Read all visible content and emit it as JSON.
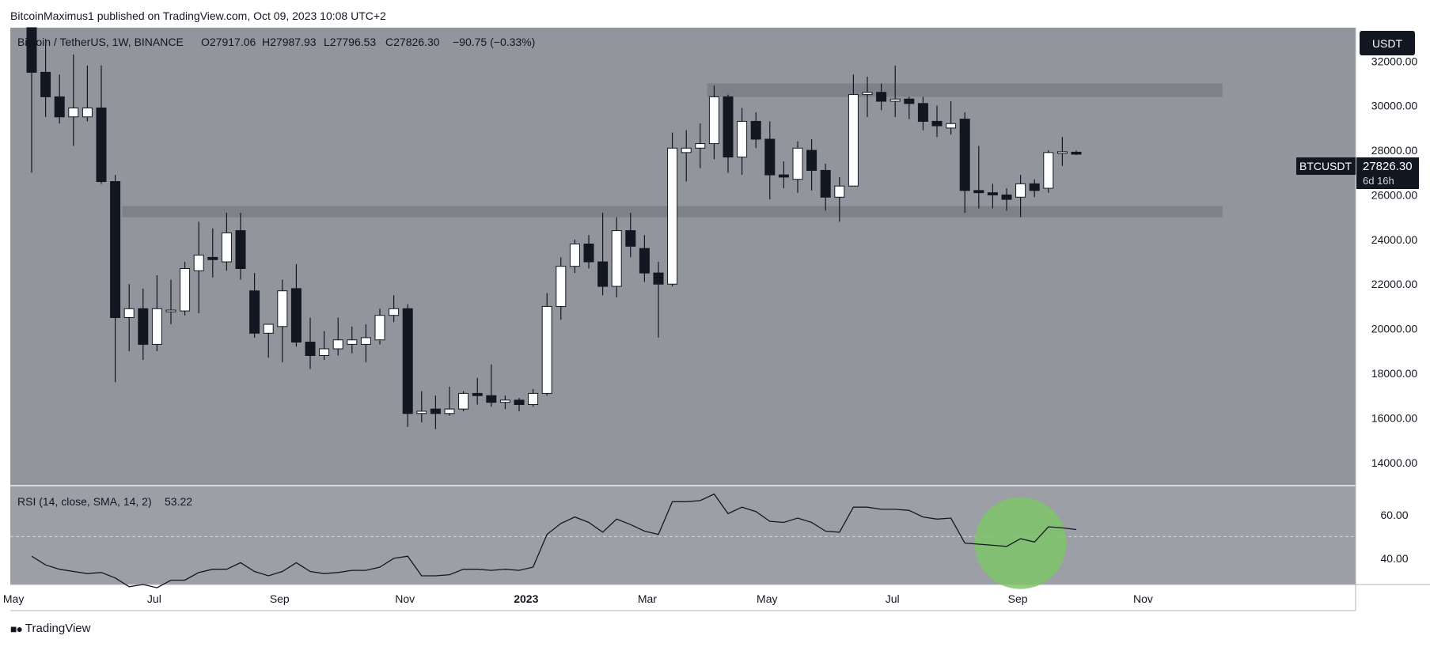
{
  "publisher_line": "BitcoinMaximus1 published on TradingView.com, Oct 09, 2023 10:08 UTC+2",
  "footer_brand": "TradingView",
  "colors": {
    "background": "#92959c",
    "rsi_background": "#9c9fa6",
    "bull_candle": "#ffffff",
    "bear_candle": "#131722",
    "zone": "#7e8188",
    "highlight": "#7fc46a"
  },
  "chart_data": [
    {
      "type": "candlestick",
      "symbol_title": "Bitcoin / TetherUS, 1W, BINANCE",
      "ohlc_header": {
        "o_label": "O",
        "o": "27917.06",
        "h_label": "H",
        "h": "27987.93",
        "l_label": "L",
        "l": "27796.53",
        "c_label": "C",
        "c": "27826.30",
        "change": "−90.75 (−0.33%)"
      },
      "currency_button": "USDT",
      "price_tag": {
        "symbol": "BTCUSDT",
        "price": "27826.30",
        "countdown": "6d 16h"
      },
      "ylim": [
        13000,
        33500
      ],
      "y_ticks": [
        "32000.00",
        "30000.00",
        "28000.00",
        "26000.00",
        "24000.00",
        "22000.00",
        "20000.00",
        "18000.00",
        "16000.00",
        "14000.00"
      ],
      "y_tick_values": [
        32000,
        30000,
        28000,
        26000,
        24000,
        22000,
        20000,
        18000,
        16000,
        14000
      ],
      "x_labels": [
        {
          "label": "May",
          "index": -1.3,
          "bold": false
        },
        {
          "label": "Jul",
          "index": 8.8,
          "bold": false
        },
        {
          "label": "Sep",
          "index": 17.8,
          "bold": false
        },
        {
          "label": "Nov",
          "index": 26.8,
          "bold": false
        },
        {
          "label": "2023",
          "index": 35.5,
          "bold": true
        },
        {
          "label": "Mar",
          "index": 44.2,
          "bold": false
        },
        {
          "label": "May",
          "index": 52.8,
          "bold": false
        },
        {
          "label": "Jul",
          "index": 61.8,
          "bold": false
        },
        {
          "label": "Sep",
          "index": 70.8,
          "bold": false
        },
        {
          "label": "Nov",
          "index": 79.8,
          "bold": false
        }
      ],
      "horizontal_zones": [
        {
          "from_index": 48.5,
          "to_index": 85.5,
          "low": 30400,
          "high": 31000
        },
        {
          "from_index": 6.5,
          "to_index": 85.5,
          "low": 25000,
          "high": 25500
        }
      ],
      "candles": [
        {
          "o": 35000,
          "h": 35500,
          "l": 27000,
          "c": 31500
        },
        {
          "o": 31500,
          "h": 33000,
          "l": 29500,
          "c": 30400
        },
        {
          "o": 30400,
          "h": 31400,
          "l": 29200,
          "c": 29500
        },
        {
          "o": 29500,
          "h": 32300,
          "l": 28200,
          "c": 29900
        },
        {
          "o": 29500,
          "h": 31800,
          "l": 29300,
          "c": 29900
        },
        {
          "o": 29900,
          "h": 31800,
          "l": 26500,
          "c": 26600
        },
        {
          "o": 26600,
          "h": 26900,
          "l": 17600,
          "c": 20500
        },
        {
          "o": 20500,
          "h": 22000,
          "l": 19000,
          "c": 20900
        },
        {
          "o": 20900,
          "h": 21800,
          "l": 18600,
          "c": 19300
        },
        {
          "o": 19300,
          "h": 22400,
          "l": 19000,
          "c": 20900
        },
        {
          "o": 20800,
          "h": 22200,
          "l": 20200,
          "c": 20800
        },
        {
          "o": 20800,
          "h": 23000,
          "l": 20600,
          "c": 22700
        },
        {
          "o": 22600,
          "h": 24800,
          "l": 20700,
          "c": 23300
        },
        {
          "o": 23200,
          "h": 24500,
          "l": 22300,
          "c": 23100
        },
        {
          "o": 23000,
          "h": 25200,
          "l": 22600,
          "c": 24300
        },
        {
          "o": 24400,
          "h": 25200,
          "l": 22200,
          "c": 22700
        },
        {
          "o": 21700,
          "h": 22500,
          "l": 19600,
          "c": 19800
        },
        {
          "o": 19800,
          "h": 20200,
          "l": 18700,
          "c": 20200
        },
        {
          "o": 20100,
          "h": 22200,
          "l": 18500,
          "c": 21700
        },
        {
          "o": 21800,
          "h": 22900,
          "l": 19200,
          "c": 19400
        },
        {
          "o": 19400,
          "h": 20500,
          "l": 18200,
          "c": 18800
        },
        {
          "o": 18800,
          "h": 19900,
          "l": 18600,
          "c": 19100
        },
        {
          "o": 19100,
          "h": 20500,
          "l": 18800,
          "c": 19500
        },
        {
          "o": 19300,
          "h": 20100,
          "l": 18900,
          "c": 19500
        },
        {
          "o": 19300,
          "h": 20200,
          "l": 18500,
          "c": 19600
        },
        {
          "o": 19500,
          "h": 20900,
          "l": 19300,
          "c": 20600
        },
        {
          "o": 20600,
          "h": 21500,
          "l": 20300,
          "c": 20900
        },
        {
          "o": 20900,
          "h": 21100,
          "l": 15600,
          "c": 16200
        },
        {
          "o": 16200,
          "h": 17200,
          "l": 15800,
          "c": 16300
        },
        {
          "o": 16400,
          "h": 17000,
          "l": 15500,
          "c": 16200
        },
        {
          "o": 16200,
          "h": 17400,
          "l": 16100,
          "c": 16400
        },
        {
          "o": 16400,
          "h": 17200,
          "l": 16300,
          "c": 17100
        },
        {
          "o": 17100,
          "h": 17800,
          "l": 16600,
          "c": 17000
        },
        {
          "o": 17000,
          "h": 18400,
          "l": 16500,
          "c": 16700
        },
        {
          "o": 16700,
          "h": 17000,
          "l": 16400,
          "c": 16800
        },
        {
          "o": 16800,
          "h": 16900,
          "l": 16300,
          "c": 16600
        },
        {
          "o": 16600,
          "h": 17300,
          "l": 16500,
          "c": 17100
        },
        {
          "o": 17100,
          "h": 21600,
          "l": 17000,
          "c": 21000
        },
        {
          "o": 21000,
          "h": 23200,
          "l": 20400,
          "c": 22800
        },
        {
          "o": 22800,
          "h": 24000,
          "l": 22500,
          "c": 23800
        },
        {
          "o": 23800,
          "h": 24200,
          "l": 22700,
          "c": 23000
        },
        {
          "o": 23000,
          "h": 25200,
          "l": 21500,
          "c": 21900
        },
        {
          "o": 21900,
          "h": 25000,
          "l": 21400,
          "c": 24400
        },
        {
          "o": 24400,
          "h": 25200,
          "l": 23200,
          "c": 23700
        },
        {
          "o": 23600,
          "h": 24200,
          "l": 22100,
          "c": 22500
        },
        {
          "o": 22500,
          "h": 23000,
          "l": 19600,
          "c": 22000
        },
        {
          "o": 22000,
          "h": 28800,
          "l": 21900,
          "c": 28100
        },
        {
          "o": 27900,
          "h": 28900,
          "l": 26600,
          "c": 28100
        },
        {
          "o": 28100,
          "h": 29200,
          "l": 27200,
          "c": 28300
        },
        {
          "o": 28300,
          "h": 30900,
          "l": 27600,
          "c": 30400
        },
        {
          "o": 30400,
          "h": 30500,
          "l": 27000,
          "c": 27700
        },
        {
          "o": 27700,
          "h": 29900,
          "l": 26900,
          "c": 29300
        },
        {
          "o": 29300,
          "h": 29700,
          "l": 28100,
          "c": 28500
        },
        {
          "o": 28500,
          "h": 29300,
          "l": 25800,
          "c": 26900
        },
        {
          "o": 26900,
          "h": 27500,
          "l": 26300,
          "c": 26800
        },
        {
          "o": 26700,
          "h": 28400,
          "l": 26100,
          "c": 28100
        },
        {
          "o": 28000,
          "h": 28500,
          "l": 26200,
          "c": 27100
        },
        {
          "o": 27100,
          "h": 27400,
          "l": 25300,
          "c": 25900
        },
        {
          "o": 25900,
          "h": 26800,
          "l": 24800,
          "c": 26400
        },
        {
          "o": 26400,
          "h": 31400,
          "l": 26400,
          "c": 30500
        },
        {
          "o": 30500,
          "h": 31300,
          "l": 29500,
          "c": 30600
        },
        {
          "o": 30600,
          "h": 31000,
          "l": 29800,
          "c": 30200
        },
        {
          "o": 30200,
          "h": 31800,
          "l": 29500,
          "c": 30300
        },
        {
          "o": 30300,
          "h": 30400,
          "l": 29400,
          "c": 30100
        },
        {
          "o": 30100,
          "h": 30400,
          "l": 28900,
          "c": 29300
        },
        {
          "o": 29300,
          "h": 30000,
          "l": 28600,
          "c": 29100
        },
        {
          "o": 29000,
          "h": 30200,
          "l": 28700,
          "c": 29200
        },
        {
          "o": 29400,
          "h": 29700,
          "l": 25200,
          "c": 26200
        },
        {
          "o": 26200,
          "h": 28200,
          "l": 25400,
          "c": 26100
        },
        {
          "o": 26100,
          "h": 26500,
          "l": 25400,
          "c": 26000
        },
        {
          "o": 26000,
          "h": 26300,
          "l": 25300,
          "c": 25800
        },
        {
          "o": 25900,
          "h": 26900,
          "l": 25000,
          "c": 26500
        },
        {
          "o": 26500,
          "h": 26700,
          "l": 25900,
          "c": 26200
        },
        {
          "o": 26300,
          "h": 28000,
          "l": 26100,
          "c": 27900
        },
        {
          "o": 27900,
          "h": 28600,
          "l": 27300,
          "c": 27900
        },
        {
          "o": 27917.06,
          "h": 27987.93,
          "l": 27796.53,
          "c": 27826.3
        }
      ]
    },
    {
      "type": "line",
      "title": "RSI (14, close, SMA, 14, 2)",
      "last_value": "53.22",
      "ylim": [
        28,
        73
      ],
      "y_ticks": [
        "60.00",
        "40.00"
      ],
      "y_tick_values": [
        60,
        40
      ],
      "midline": 50,
      "values": [
        41,
        37,
        35,
        34,
        33,
        33.5,
        31,
        27,
        28,
        26.5,
        30,
        30,
        33.5,
        35,
        35,
        38,
        34,
        32,
        34,
        38,
        34,
        33,
        33.5,
        34.5,
        34.5,
        36,
        40,
        41,
        32,
        32,
        32.5,
        35,
        35,
        34.5,
        35,
        34.5,
        36,
        51,
        56,
        59,
        56.5,
        52,
        58,
        55.5,
        52.5,
        51,
        66,
        66,
        66.5,
        69.5,
        60.5,
        63.5,
        61.5,
        57,
        56.5,
        58.5,
        56.5,
        52.5,
        52,
        63.5,
        63.5,
        62.5,
        62.5,
        62,
        59,
        58,
        58.5,
        47,
        46.5,
        46,
        45.5,
        49,
        47.5,
        54.5,
        54,
        53.22
      ],
      "highlight_circle": {
        "index": 71,
        "value": 47
      }
    }
  ]
}
